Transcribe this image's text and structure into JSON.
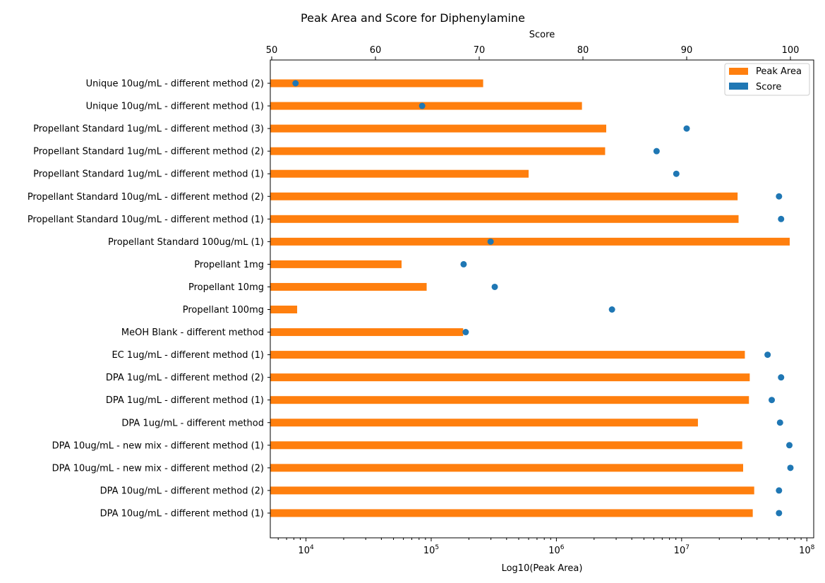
{
  "chart_data": {
    "type": "bar",
    "orientation": "horizontal",
    "title": "Peak Area and Score for Diphenylamine",
    "xlabel": "Log10(Peak Area)",
    "x2label": "Score",
    "x_scale": "log",
    "x_ticks": [
      "10^4",
      "10^5",
      "10^6",
      "10^7",
      "10^8"
    ],
    "x2_ticks": [
      "50",
      "60",
      "70",
      "80",
      "90",
      "100"
    ],
    "x2lim": [
      50,
      100
    ],
    "grid": false,
    "legend_position": "top-right",
    "colors": {
      "peak_area": "#ff7f0e",
      "score": "#1f77b4"
    },
    "categories": [
      "Unique 10ug/mL - different method (2)",
      "Unique 10ug/mL - different method (1)",
      "Propellant Standard 1ug/mL - different method (3)",
      "Propellant Standard 1ug/mL - different method (2)",
      "Propellant Standard 1ug/mL - different method (1)",
      "Propellant Standard 10ug/mL - different method (2)",
      "Propellant Standard 10ug/mL - different method (1)",
      "Propellant Standard 100ug/mL (1)",
      "Propellant 1mg",
      "Propellant 10mg",
      "Propellant 100mg",
      "MeOH Blank - different method",
      "EC 1ug/mL  - different method (1)",
      "DPA 1ug/mL  - different method (2)",
      "DPA 1ug/mL  - different method (1)",
      "DPA 1ug/mL  - different method",
      "DPA 10ug/mL - new mix - different method (1)",
      "DPA 10ug/mL - new mix  - different method (2)",
      "DPA 10ug/mL  - different method (2)",
      "DPA 10ug/mL  - different method (1)"
    ],
    "series": [
      {
        "name": "Peak Area",
        "type": "bar",
        "values": [
          260000,
          1600000,
          2500000,
          2450000,
          600000,
          28000000,
          28500000,
          73000000,
          58000,
          92000,
          8500,
          180000,
          32000000,
          35000000,
          34500000,
          13500000,
          30500000,
          31000000,
          38000000,
          37000000
        ]
      },
      {
        "name": "Score",
        "type": "scatter",
        "values": [
          52.3,
          64.5,
          90.0,
          87.1,
          89.0,
          98.9,
          99.1,
          71.1,
          68.5,
          71.5,
          82.8,
          68.7,
          97.8,
          99.1,
          98.2,
          99.0,
          99.9,
          100.0,
          98.9,
          98.9
        ]
      }
    ]
  }
}
